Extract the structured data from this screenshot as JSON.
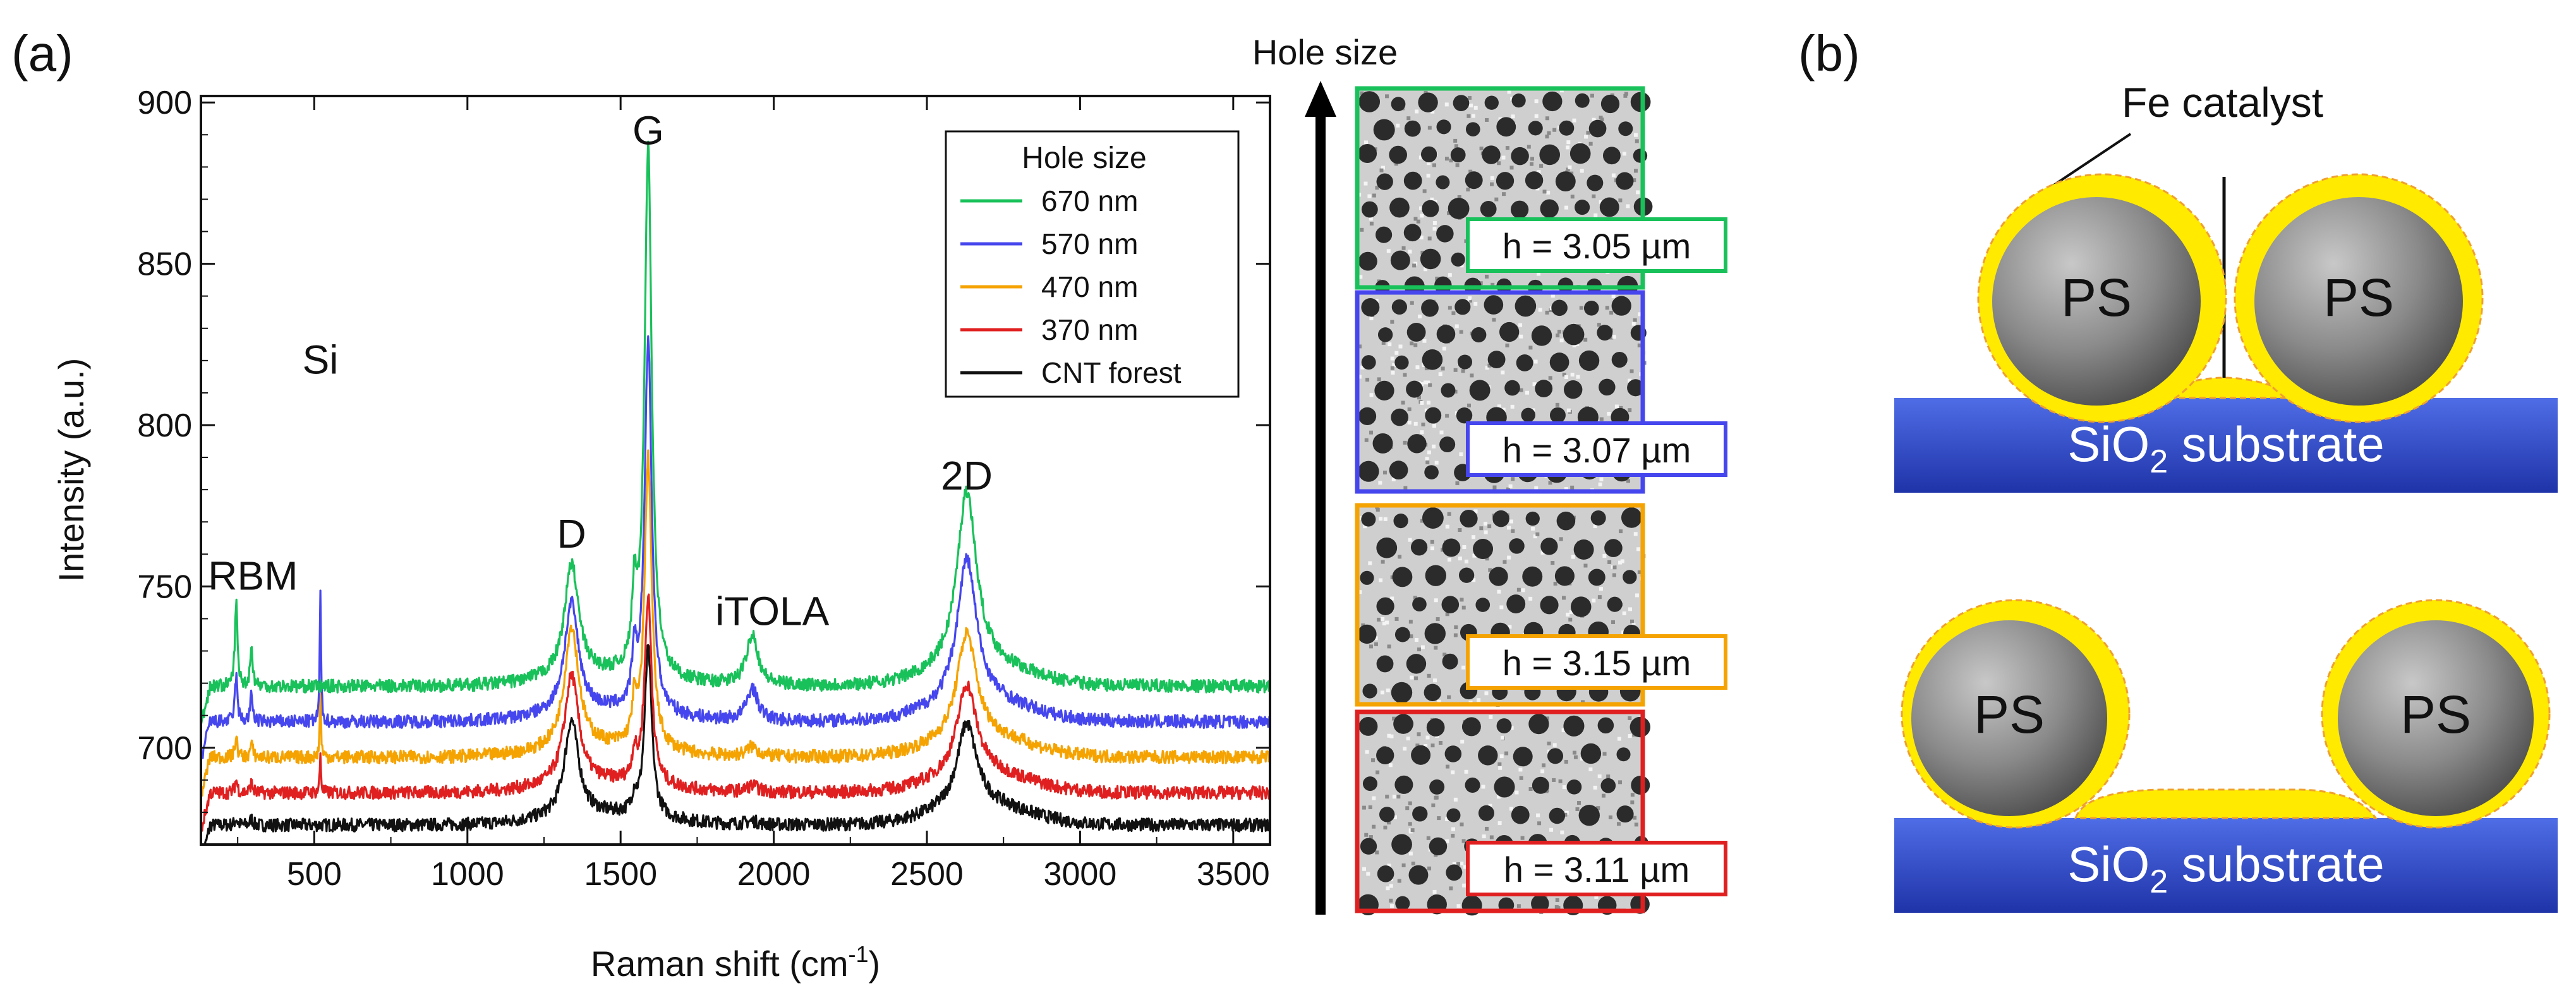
{
  "panel_a_label": "(a)",
  "panel_b_label": "(b)",
  "chart_data": {
    "type": "line",
    "title": "",
    "xlabel": "Raman shift (cm",
    "xlabel_sup": "-1",
    "xlabel_end": ")",
    "ylabel": "Intensity (a.u.)",
    "xlim": [
      130,
      3620
    ],
    "ylim": [
      670,
      902
    ],
    "xticks": [
      500,
      1000,
      1500,
      2000,
      2500,
      3000,
      3500
    ],
    "yticks": [
      700,
      750,
      800,
      850,
      900
    ],
    "legend_title": "Hole size",
    "legend_position": "top-right",
    "series": [
      {
        "name": "670 nm",
        "color": "#19c15a",
        "baseline": 719,
        "peaks": {
          "RBM": 26,
          "RBM2": 12,
          "Si": 0,
          "D": 35,
          "D2": 22,
          "G": 165,
          "iTOLA": 16,
          "2D": 55
        }
      },
      {
        "name": "570 nm",
        "color": "#4646ee",
        "baseline": 708,
        "peaks": {
          "RBM": 14,
          "RBM2": 8,
          "Si": 40,
          "D": 34,
          "D2": 15,
          "G": 115,
          "iTOLA": 10,
          "2D": 45
        }
      },
      {
        "name": "470 nm",
        "color": "#f5a300",
        "baseline": 697,
        "peaks": {
          "RBM": 6,
          "RBM2": 4,
          "Si": 20,
          "D": 38,
          "D2": 12,
          "G": 90,
          "iTOLA": 3,
          "2D": 33
        }
      },
      {
        "name": "370 nm",
        "color": "#e02020",
        "baseline": 686,
        "peaks": {
          "RBM": 4,
          "RBM2": 3,
          "Si": 12,
          "D": 34,
          "D2": 8,
          "G": 58,
          "iTOLA": 2,
          "2D": 28
        }
      },
      {
        "name": "CNT forest",
        "color": "#111111",
        "baseline": 676,
        "peaks": {
          "RBM": 2,
          "RBM2": 2,
          "Si": 0,
          "D": 30,
          "D2": 5,
          "G": 52,
          "iTOLA": 1,
          "2D": 26
        }
      }
    ],
    "peak_positions": {
      "RBM": 245,
      "RBM2": 295,
      "Si": 520,
      "D": 1340,
      "D2": 1545,
      "G": 1590,
      "iTOLA": 1930,
      "2D": 2630
    },
    "annotations": [
      {
        "text": "RBM",
        "x": 300,
        "y": 749
      },
      {
        "text": "Si",
        "x": 520,
        "y": 816
      },
      {
        "text": "D",
        "x": 1340,
        "y": 762
      },
      {
        "text": "G",
        "x": 1590,
        "y": 887
      },
      {
        "text": "iTOLA",
        "x": 1995,
        "y": 738
      },
      {
        "text": "2D",
        "x": 2630,
        "y": 780
      }
    ]
  },
  "hole_panel": {
    "arrow_label": "Hole size",
    "images": [
      {
        "h": "h = 3.05 µm",
        "border": "#19c15a"
      },
      {
        "h": "h = 3.07 µm",
        "border": "#4646ee"
      },
      {
        "h": "h = 3.15 µm",
        "border": "#f5a300"
      },
      {
        "h": "h = 3.11 µm",
        "border": "#e02020"
      }
    ]
  },
  "schematic": {
    "fe_label": "Fe catalyst",
    "ps_label": "PS",
    "substrate_pre": "SiO",
    "substrate_sub": "2",
    "substrate_post": " substrate"
  }
}
